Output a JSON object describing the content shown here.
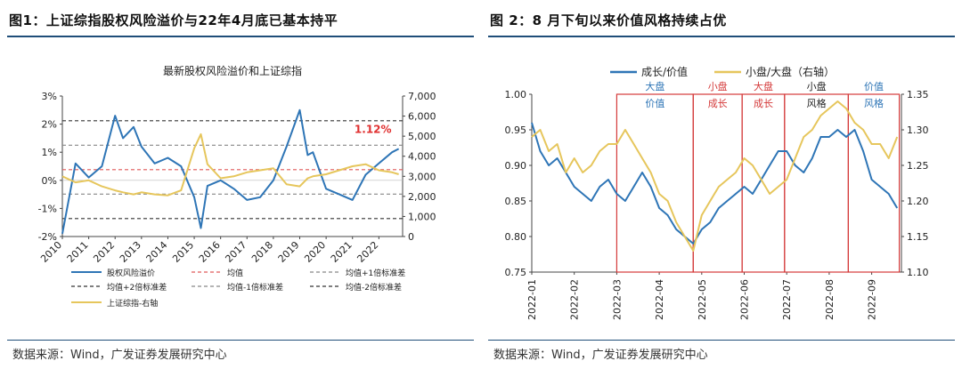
{
  "figure1": {
    "title": "图1：上证综指股权风险溢价与22年4月底已基本持平",
    "source": "数据来源：Wind，广发证券发展研究中心",
    "chart_data": {
      "type": "line",
      "title": "最新股权风险溢价和上证综指",
      "x": [
        2010,
        2010.5,
        2011,
        2011.5,
        2012,
        2012.3,
        2012.7,
        2013,
        2013.5,
        2014,
        2014.5,
        2015,
        2015.25,
        2015.5,
        2016,
        2016.5,
        2017,
        2017.5,
        2018,
        2018.5,
        2019,
        2019.3,
        2019.5,
        2020,
        2020.5,
        2021,
        2021.5,
        2022,
        2022.5,
        2022.75
      ],
      "xticks": [
        "2010",
        "2011",
        "2012",
        "2013",
        "2014",
        "2015",
        "2016",
        "2017",
        "2018",
        "2019",
        "2020",
        "2021",
        "2022"
      ],
      "ylim_left": [
        -2,
        3
      ],
      "yticks_left": [
        "-2%",
        "-1%",
        "0%",
        "1%",
        "2%",
        "3%"
      ],
      "ylim_right": [
        0,
        7000
      ],
      "yticks_right": [
        "0",
        "1,000",
        "2,000",
        "3,000",
        "4,000",
        "5,000",
        "6,000",
        "7,000"
      ],
      "series": [
        {
          "name": "股权风险溢价",
          "axis": "left",
          "color": "#2e75b6",
          "values": [
            -1.9,
            0.6,
            0.1,
            0.5,
            2.3,
            1.5,
            1.9,
            1.2,
            0.6,
            0.8,
            0.5,
            -0.6,
            -1.7,
            -0.2,
            0.0,
            -0.3,
            -0.7,
            -0.6,
            0.0,
            1.2,
            2.5,
            0.9,
            1.0,
            -0.3,
            -0.5,
            -0.7,
            0.2,
            0.6,
            1.0,
            1.12
          ]
        },
        {
          "name": "上证综指-右轴",
          "axis": "right",
          "color": "#e6c65c",
          "values": [
            3000,
            2700,
            2800,
            2500,
            2300,
            2200,
            2100,
            2200,
            2100,
            2050,
            2300,
            4400,
            5100,
            3600,
            2900,
            3000,
            3200,
            3300,
            3400,
            2600,
            2500,
            2900,
            3000,
            3100,
            3300,
            3500,
            3600,
            3300,
            3200,
            3100
          ]
        }
      ],
      "reference_lines": [
        {
          "name": "均值",
          "value": 0.38,
          "color": "#e05a5a"
        },
        {
          "name": "均值+1倍标准差",
          "value": 1.25,
          "color": "#888888"
        },
        {
          "name": "均值+2倍标准差",
          "value": 2.12,
          "color": "#333333"
        },
        {
          "name": "均值-1倍标准差",
          "value": -0.49,
          "color": "#888888"
        },
        {
          "name": "均值-2倍标准差",
          "value": -1.36,
          "color": "#333333"
        }
      ],
      "annotation": "1.12%",
      "legend": [
        "股权风险溢价",
        "均值",
        "均值+1倍标准差",
        "均值+2倍标准差",
        "均值-1倍标准差",
        "均值-2倍标准差",
        "上证综指-右轴"
      ]
    }
  },
  "figure2": {
    "title": "图 2：8 月下旬以来价值风格持续占优",
    "source": "数据来源：Wind，广发证券发展研究中心",
    "chart_data": {
      "type": "line",
      "x_months": [
        1,
        1.2,
        1.4,
        1.6,
        1.8,
        2.0,
        2.2,
        2.4,
        2.6,
        2.8,
        3.0,
        3.2,
        3.4,
        3.6,
        3.8,
        4.0,
        4.2,
        4.4,
        4.6,
        4.8,
        5.0,
        5.2,
        5.4,
        5.6,
        5.8,
        6.0,
        6.2,
        6.4,
        6.6,
        6.8,
        7.0,
        7.2,
        7.4,
        7.6,
        7.8,
        8.0,
        8.2,
        8.4,
        8.6,
        8.8,
        9.0,
        9.2,
        9.4,
        9.6
      ],
      "xticks": [
        "2022-01",
        "2022-02",
        "2022-03",
        "2022-04",
        "2022-05",
        "2022-06",
        "2022-07",
        "2022-08",
        "2022-09"
      ],
      "ylim_left": [
        0.75,
        1.0
      ],
      "yticks_left": [
        "0.75",
        "0.80",
        "0.85",
        "0.90",
        "0.95",
        "1.00"
      ],
      "ylim_right": [
        1.1,
        1.35
      ],
      "yticks_right": [
        "1.10",
        "1.15",
        "1.20",
        "1.25",
        "1.30",
        "1.35"
      ],
      "series": [
        {
          "name": "成长/价值",
          "axis": "left",
          "color": "#2e75b6",
          "values": [
            0.96,
            0.92,
            0.9,
            0.91,
            0.89,
            0.87,
            0.86,
            0.85,
            0.87,
            0.88,
            0.86,
            0.85,
            0.87,
            0.89,
            0.87,
            0.84,
            0.83,
            0.81,
            0.8,
            0.79,
            0.81,
            0.82,
            0.84,
            0.85,
            0.86,
            0.87,
            0.86,
            0.88,
            0.9,
            0.92,
            0.92,
            0.9,
            0.89,
            0.91,
            0.94,
            0.94,
            0.95,
            0.94,
            0.95,
            0.92,
            0.88,
            0.87,
            0.86,
            0.84
          ]
        },
        {
          "name": "小盘/大盘（右轴）",
          "axis": "right",
          "color": "#e6c65c",
          "values": [
            1.29,
            1.3,
            1.27,
            1.28,
            1.24,
            1.26,
            1.24,
            1.25,
            1.27,
            1.28,
            1.28,
            1.3,
            1.28,
            1.26,
            1.24,
            1.21,
            1.2,
            1.17,
            1.15,
            1.13,
            1.18,
            1.2,
            1.22,
            1.23,
            1.24,
            1.26,
            1.25,
            1.23,
            1.21,
            1.22,
            1.23,
            1.26,
            1.29,
            1.3,
            1.32,
            1.33,
            1.34,
            1.33,
            1.31,
            1.3,
            1.28,
            1.28,
            1.26,
            1.29
          ]
        }
      ],
      "periods": [
        {
          "line1": "大盘",
          "line2": "价值",
          "c1": "#2e75b6",
          "c2": "#2e75b6"
        },
        {
          "line1": "小盘",
          "line2": "成长",
          "c1": "#d43a3a",
          "c2": "#d43a3a"
        },
        {
          "line1": "大盘",
          "line2": "成长",
          "c1": "#d43a3a",
          "c2": "#d43a3a"
        },
        {
          "line1": "小盘",
          "line2": "风格",
          "c1": "#222222",
          "c2": "#222222"
        },
        {
          "line1": "价值",
          "line2": "风格",
          "c1": "#2e75b6",
          "c2": "#2e75b6"
        }
      ],
      "legend": [
        "成长/价值",
        "小盘/大盘（右轴）"
      ]
    }
  }
}
